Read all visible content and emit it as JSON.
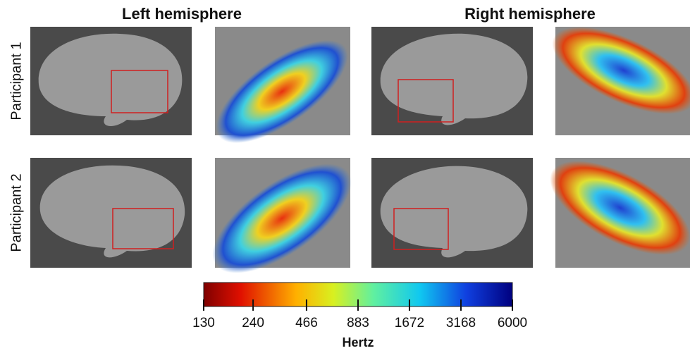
{
  "headers": [
    "Left hemisphere",
    "Right hemisphere"
  ],
  "rows": [
    "Participant 1",
    "Participant 2"
  ],
  "colorbar": {
    "label": "Hertz",
    "lim": [
      130,
      6000
    ],
    "log": true,
    "ticks": [
      130,
      240,
      466,
      883,
      1672,
      3168,
      6000
    ]
  }
}
